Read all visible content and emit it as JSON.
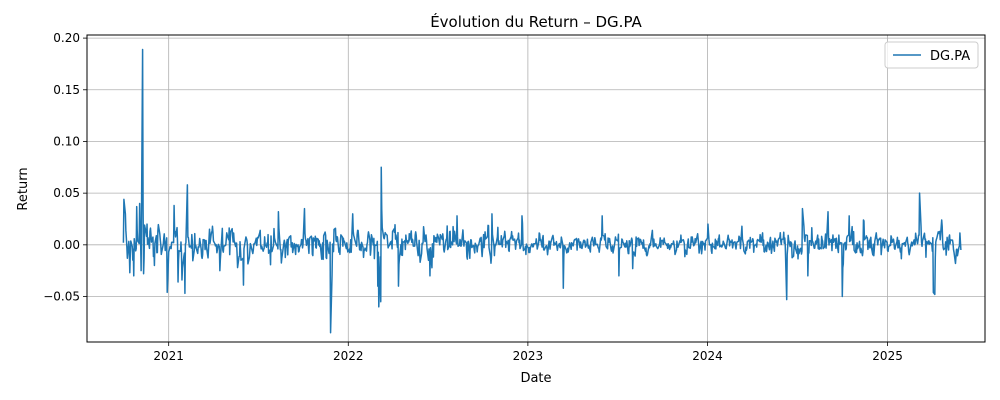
{
  "chart_data": {
    "type": "line",
    "title": "Évolution du Return – DG.PA",
    "xlabel": "Date",
    "ylabel": "Return",
    "x_ticks": [
      "2021",
      "2022",
      "2023",
      "2024",
      "2025"
    ],
    "y_ticks": [
      "−0.05",
      "0.00",
      "0.05",
      "0.10",
      "0.15",
      "0.20"
    ],
    "ylim": [
      -0.094,
      0.203
    ],
    "xlim": [
      "2020-07-19",
      "2025-07-18"
    ],
    "grid": true,
    "legend_position": "top-right",
    "colors": {
      "series": "#1f77b4",
      "grid": "#b0b0b0"
    },
    "series": [
      {
        "name": "DG.PA",
        "x_start": "2020-10-01",
        "x_end": "2025-05-30",
        "anchors": [
          [
            "2020-10-01",
            0.002
          ],
          [
            "2020-10-02",
            0.044
          ],
          [
            "2020-10-05",
            0.03
          ],
          [
            "2020-10-09",
            -0.013
          ],
          [
            "2020-10-14",
            -0.027
          ],
          [
            "2020-10-22",
            -0.03
          ],
          [
            "2020-10-28",
            0.037
          ],
          [
            "2020-11-03",
            0.04
          ],
          [
            "2020-11-06",
            -0.025
          ],
          [
            "2020-11-09",
            0.189
          ],
          [
            "2020-11-10",
            0.034
          ],
          [
            "2020-11-11",
            -0.028
          ],
          [
            "2020-12-03",
            -0.02
          ],
          [
            "2020-12-29",
            -0.046
          ],
          [
            "2021-01-12",
            0.038
          ],
          [
            "2021-01-20",
            -0.036
          ],
          [
            "2021-01-28",
            -0.034
          ],
          [
            "2021-02-03",
            -0.047
          ],
          [
            "2021-02-08",
            0.058
          ],
          [
            "2021-04-15",
            -0.025
          ],
          [
            "2021-05-21",
            -0.022
          ],
          [
            "2021-06-02",
            -0.039
          ],
          [
            "2021-08-12",
            0.032
          ],
          [
            "2021-10-04",
            0.035
          ],
          [
            "2021-11-26",
            -0.085
          ],
          [
            "2022-01-10",
            0.03
          ],
          [
            "2022-03-02",
            -0.04
          ],
          [
            "2022-03-04",
            -0.06
          ],
          [
            "2022-03-08",
            -0.055
          ],
          [
            "2022-03-09",
            0.075
          ],
          [
            "2022-04-13",
            -0.04
          ],
          [
            "2022-06-16",
            -0.03
          ],
          [
            "2022-08-10",
            0.028
          ],
          [
            "2022-10-20",
            0.03
          ],
          [
            "2022-12-20",
            0.028
          ],
          [
            "2023-03-14",
            -0.042
          ],
          [
            "2023-06-01",
            0.028
          ],
          [
            "2023-07-05",
            -0.03
          ],
          [
            "2023-08-02",
            -0.023
          ],
          [
            "2024-01-02",
            0.02
          ],
          [
            "2024-03-11",
            0.018
          ],
          [
            "2024-06-10",
            -0.053
          ],
          [
            "2024-07-12",
            0.035
          ],
          [
            "2024-07-23",
            -0.03
          ],
          [
            "2024-09-02",
            0.032
          ],
          [
            "2024-10-01",
            -0.05
          ],
          [
            "2024-10-15",
            0.028
          ],
          [
            "2024-11-13",
            0.024
          ],
          [
            "2025-03-07",
            0.05
          ],
          [
            "2025-03-20",
            -0.012
          ],
          [
            "2025-04-04",
            -0.046
          ],
          [
            "2025-04-07",
            -0.048
          ],
          [
            "2025-04-21",
            0.024
          ],
          [
            "2025-05-19",
            -0.018
          ],
          [
            "2025-05-30",
            -0.005
          ]
        ]
      }
    ]
  }
}
